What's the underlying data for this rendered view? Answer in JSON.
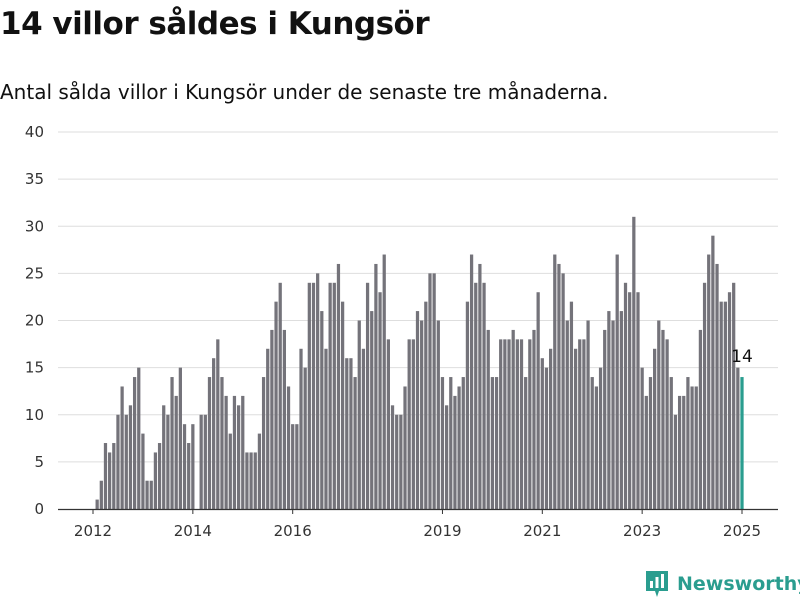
{
  "title": "14 villor såldes i Kungsör",
  "subtitle": "Antal sålda villor i Kungsör under de senaste tre månaderna.",
  "brand": {
    "name": "Newsworthy",
    "icon": "newsworthy-logo-icon",
    "color": "#2a9d8f"
  },
  "colors": {
    "bar": "#74737a",
    "highlight": "#2a9d8f",
    "grid": "#dedede"
  },
  "chart_data": {
    "type": "bar",
    "title": "14 villor såldes i Kungsör",
    "subtitle": "Antal sålda villor i Kungsör under de senaste tre månaderna.",
    "xlabel": "",
    "ylabel": "",
    "ylim": [
      0,
      40
    ],
    "yticks": [
      0,
      5,
      10,
      15,
      20,
      25,
      30,
      35,
      40
    ],
    "xticks": [
      "2012",
      "2014",
      "2016",
      "2019",
      "2021",
      "2023",
      "2025"
    ],
    "x_start": "2012-01",
    "x_end": "2025-01",
    "grid": true,
    "highlight_last": true,
    "last_label": "14",
    "values": [
      1,
      3,
      7,
      6,
      7,
      10,
      13,
      10,
      11,
      14,
      15,
      8,
      3,
      3,
      6,
      7,
      11,
      10,
      14,
      12,
      15,
      9,
      7,
      9,
      0,
      10,
      10,
      14,
      16,
      18,
      14,
      12,
      8,
      12,
      11,
      12,
      6,
      6,
      6,
      8,
      14,
      17,
      19,
      22,
      24,
      19,
      13,
      9,
      9,
      17,
      15,
      24,
      24,
      25,
      21,
      17,
      24,
      24,
      26,
      22,
      16,
      16,
      14,
      20,
      17,
      24,
      21,
      26,
      23,
      27,
      18,
      11,
      10,
      10,
      13,
      18,
      18,
      21,
      20,
      22,
      25,
      25,
      20,
      14,
      11,
      14,
      12,
      13,
      14,
      22,
      27,
      24,
      26,
      24,
      19,
      14,
      14,
      18,
      18,
      18,
      19,
      18,
      18,
      14,
      18,
      19,
      23,
      16,
      15,
      17,
      27,
      26,
      25,
      20,
      22,
      17,
      18,
      18,
      20,
      14,
      13,
      15,
      19,
      21,
      20,
      27,
      21,
      24,
      23,
      31,
      23,
      15,
      12,
      14,
      17,
      20,
      19,
      18,
      14,
      10,
      12,
      12,
      14,
      13,
      13,
      19,
      24,
      27,
      29,
      26,
      22,
      22,
      23,
      24,
      15,
      14
    ]
  }
}
